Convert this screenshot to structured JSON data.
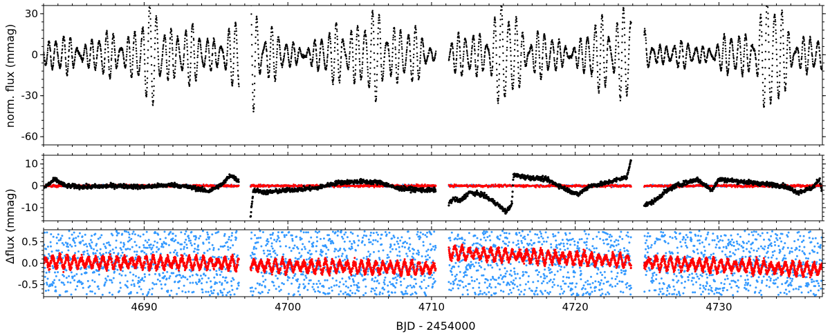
{
  "chart_data": {
    "type": "scatter",
    "xlabel": "BJD - 2454000",
    "shared_xlim": [
      4683,
      4737.2
    ],
    "x_ticks": [
      4690,
      4700,
      4710,
      4720,
      4730
    ],
    "x_tick_labels": [
      "4690",
      "4700",
      "4710",
      "4720",
      "4730"
    ],
    "colors": {
      "data": "#000000",
      "model_blue": "#3399ff",
      "model_red": "#ff0000"
    },
    "segments": [
      [
        4683,
        4696.6
      ],
      [
        4697.4,
        4710.3
      ],
      [
        4711.2,
        4723.9
      ],
      [
        4724.8,
        4737.2
      ]
    ],
    "panels": [
      {
        "id": "flux",
        "ylabel": "norm. flux (mmag)",
        "ylim": [
          36,
          -66
        ],
        "yticks": [
          -60,
          -30,
          0,
          30
        ],
        "ytick_labels": [
          "-60",
          "-30",
          "0",
          "30"
        ],
        "series": [
          {
            "color": "#000000",
            "description_points": "light curve"
          }
        ]
      },
      {
        "id": "residual-black",
        "ylabel": "",
        "ylim": [
          14,
          -16
        ],
        "yticks": [
          -10,
          0,
          10
        ],
        "ytick_labels": [
          "-10",
          "0",
          "10"
        ]
      },
      {
        "id": "residual-colored",
        "ylabel": "",
        "ylim": [
          0.78,
          -0.78
        ],
        "yticks": [
          -0.5,
          0.0,
          0.5
        ],
        "ytick_labels": [
          "-0.5",
          "0.0",
          "0.5"
        ]
      }
    ],
    "shared_ylabel": "Δflux (mmag)",
    "flux_envelope": [
      [
        4683.5,
        10
      ],
      [
        4684.5,
        14
      ],
      [
        4686,
        12
      ],
      [
        4688,
        16
      ],
      [
        4690,
        28
      ],
      [
        4691,
        34
      ],
      [
        4692,
        28
      ],
      [
        4693,
        20
      ],
      [
        4694,
        16
      ],
      [
        4695,
        18
      ],
      [
        4696.5,
        20
      ],
      [
        4697.4,
        62
      ],
      [
        4697.9,
        45
      ],
      [
        4698.5,
        28
      ],
      [
        4699.5,
        10
      ],
      [
        4701,
        8
      ],
      [
        4703,
        16
      ],
      [
        4704,
        36
      ],
      [
        4705,
        24
      ],
      [
        4706.5,
        30
      ],
      [
        4707.5,
        32
      ],
      [
        4708.5,
        20
      ],
      [
        4709.5,
        12
      ],
      [
        4710.3,
        6
      ],
      [
        4711.3,
        10
      ],
      [
        4712.5,
        16
      ],
      [
        4714,
        28
      ],
      [
        4715.2,
        34
      ],
      [
        4716,
        30
      ],
      [
        4717,
        22
      ],
      [
        4718,
        14
      ],
      [
        4719,
        10
      ],
      [
        4720.5,
        14
      ],
      [
        4721.5,
        22
      ],
      [
        4722.5,
        36
      ],
      [
        4723.2,
        48
      ],
      [
        4723.9,
        40
      ],
      [
        4725,
        14
      ],
      [
        4726,
        10
      ],
      [
        4728,
        8
      ],
      [
        4730,
        10
      ],
      [
        4731.5,
        18
      ],
      [
        4733,
        36
      ],
      [
        4734,
        40
      ],
      [
        4735,
        24
      ],
      [
        4736,
        14
      ],
      [
        4737.2,
        10
      ]
    ],
    "flux_period_days": 0.5,
    "residual_black": [
      [
        4683,
        -1
      ],
      [
        4683.8,
        3
      ],
      [
        4684.5,
        0
      ],
      [
        4686,
        -0.5
      ],
      [
        4688,
        0
      ],
      [
        4690,
        -0.5
      ],
      [
        4692,
        0.5
      ],
      [
        4693.5,
        -1
      ],
      [
        4694.5,
        -2.5
      ],
      [
        4695.5,
        1
      ],
      [
        4696,
        5
      ],
      [
        4696.6,
        2
      ],
      [
        4697.4,
        -14
      ],
      [
        4697.6,
        -2
      ],
      [
        4698.5,
        -3
      ],
      [
        4700,
        -2
      ],
      [
        4702,
        -1
      ],
      [
        4703.5,
        1.5
      ],
      [
        4705,
        2
      ],
      [
        4706.5,
        1.5
      ],
      [
        4707.5,
        -1
      ],
      [
        4708.5,
        -1.5
      ],
      [
        4709.5,
        -2
      ],
      [
        4710.3,
        -2
      ],
      [
        4711.2,
        -8
      ],
      [
        4711.5,
        -6
      ],
      [
        4712,
        -7
      ],
      [
        4712.6,
        -3
      ],
      [
        4713.5,
        -4
      ],
      [
        4714.5,
        -8
      ],
      [
        4715.2,
        -12
      ],
      [
        4715.6,
        -8
      ],
      [
        4715.7,
        5
      ],
      [
        4716.5,
        4
      ],
      [
        4718,
        3
      ],
      [
        4719.5,
        -2
      ],
      [
        4720.2,
        -4
      ],
      [
        4721,
        0
      ],
      [
        4722,
        1
      ],
      [
        4723,
        3
      ],
      [
        4723.6,
        4
      ],
      [
        4723.9,
        13
      ],
      [
        4724.8,
        -9
      ],
      [
        4725.5,
        -7
      ],
      [
        4726.2,
        -3
      ],
      [
        4727,
        0
      ],
      [
        4728.5,
        3
      ],
      [
        4729.5,
        -2
      ],
      [
        4730,
        3
      ],
      [
        4731.5,
        2
      ],
      [
        4733,
        1
      ],
      [
        4734.5,
        0
      ],
      [
        4735.5,
        -3
      ],
      [
        4736.5,
        -1
      ],
      [
        4737,
        3
      ],
      [
        4737.2,
        -3
      ]
    ],
    "residual_red_offsets": [
      [
        4683,
        0.03
      ],
      [
        4696.6,
        0.0
      ],
      [
        4697.4,
        -0.05
      ],
      [
        4710.3,
        -0.12
      ],
      [
        4711.2,
        0.25
      ],
      [
        4723.9,
        0.05
      ],
      [
        4724.8,
        0.02
      ],
      [
        4737.2,
        -0.15
      ]
    ]
  }
}
